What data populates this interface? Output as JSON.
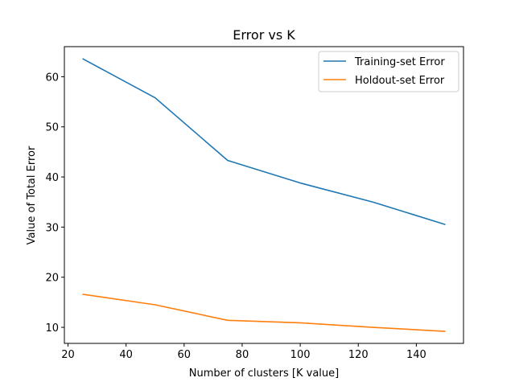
{
  "chart_data": {
    "type": "line",
    "title": "Error vs K",
    "xlabel": "Number of clusters [K value]",
    "ylabel": "Value of Total Error",
    "xlim": [
      18.75,
      156.25
    ],
    "ylim": [
      6.8,
      66.0
    ],
    "xticks": [
      20,
      40,
      60,
      80,
      100,
      120,
      140
    ],
    "yticks": [
      10,
      20,
      30,
      40,
      50,
      60
    ],
    "grid": false,
    "legend_position": "top-right",
    "series": [
      {
        "name": "Training-set Error",
        "color": "#1f77b4",
        "x": [
          25,
          50,
          75,
          100,
          125,
          150
        ],
        "y": [
          63.6,
          55.8,
          43.3,
          38.8,
          35.0,
          30.5
        ]
      },
      {
        "name": "Holdout-set Error",
        "color": "#ff7f0e",
        "x": [
          25,
          50,
          75,
          100,
          125,
          150
        ],
        "y": [
          16.6,
          14.5,
          11.4,
          10.9,
          10.0,
          9.2
        ]
      }
    ]
  }
}
